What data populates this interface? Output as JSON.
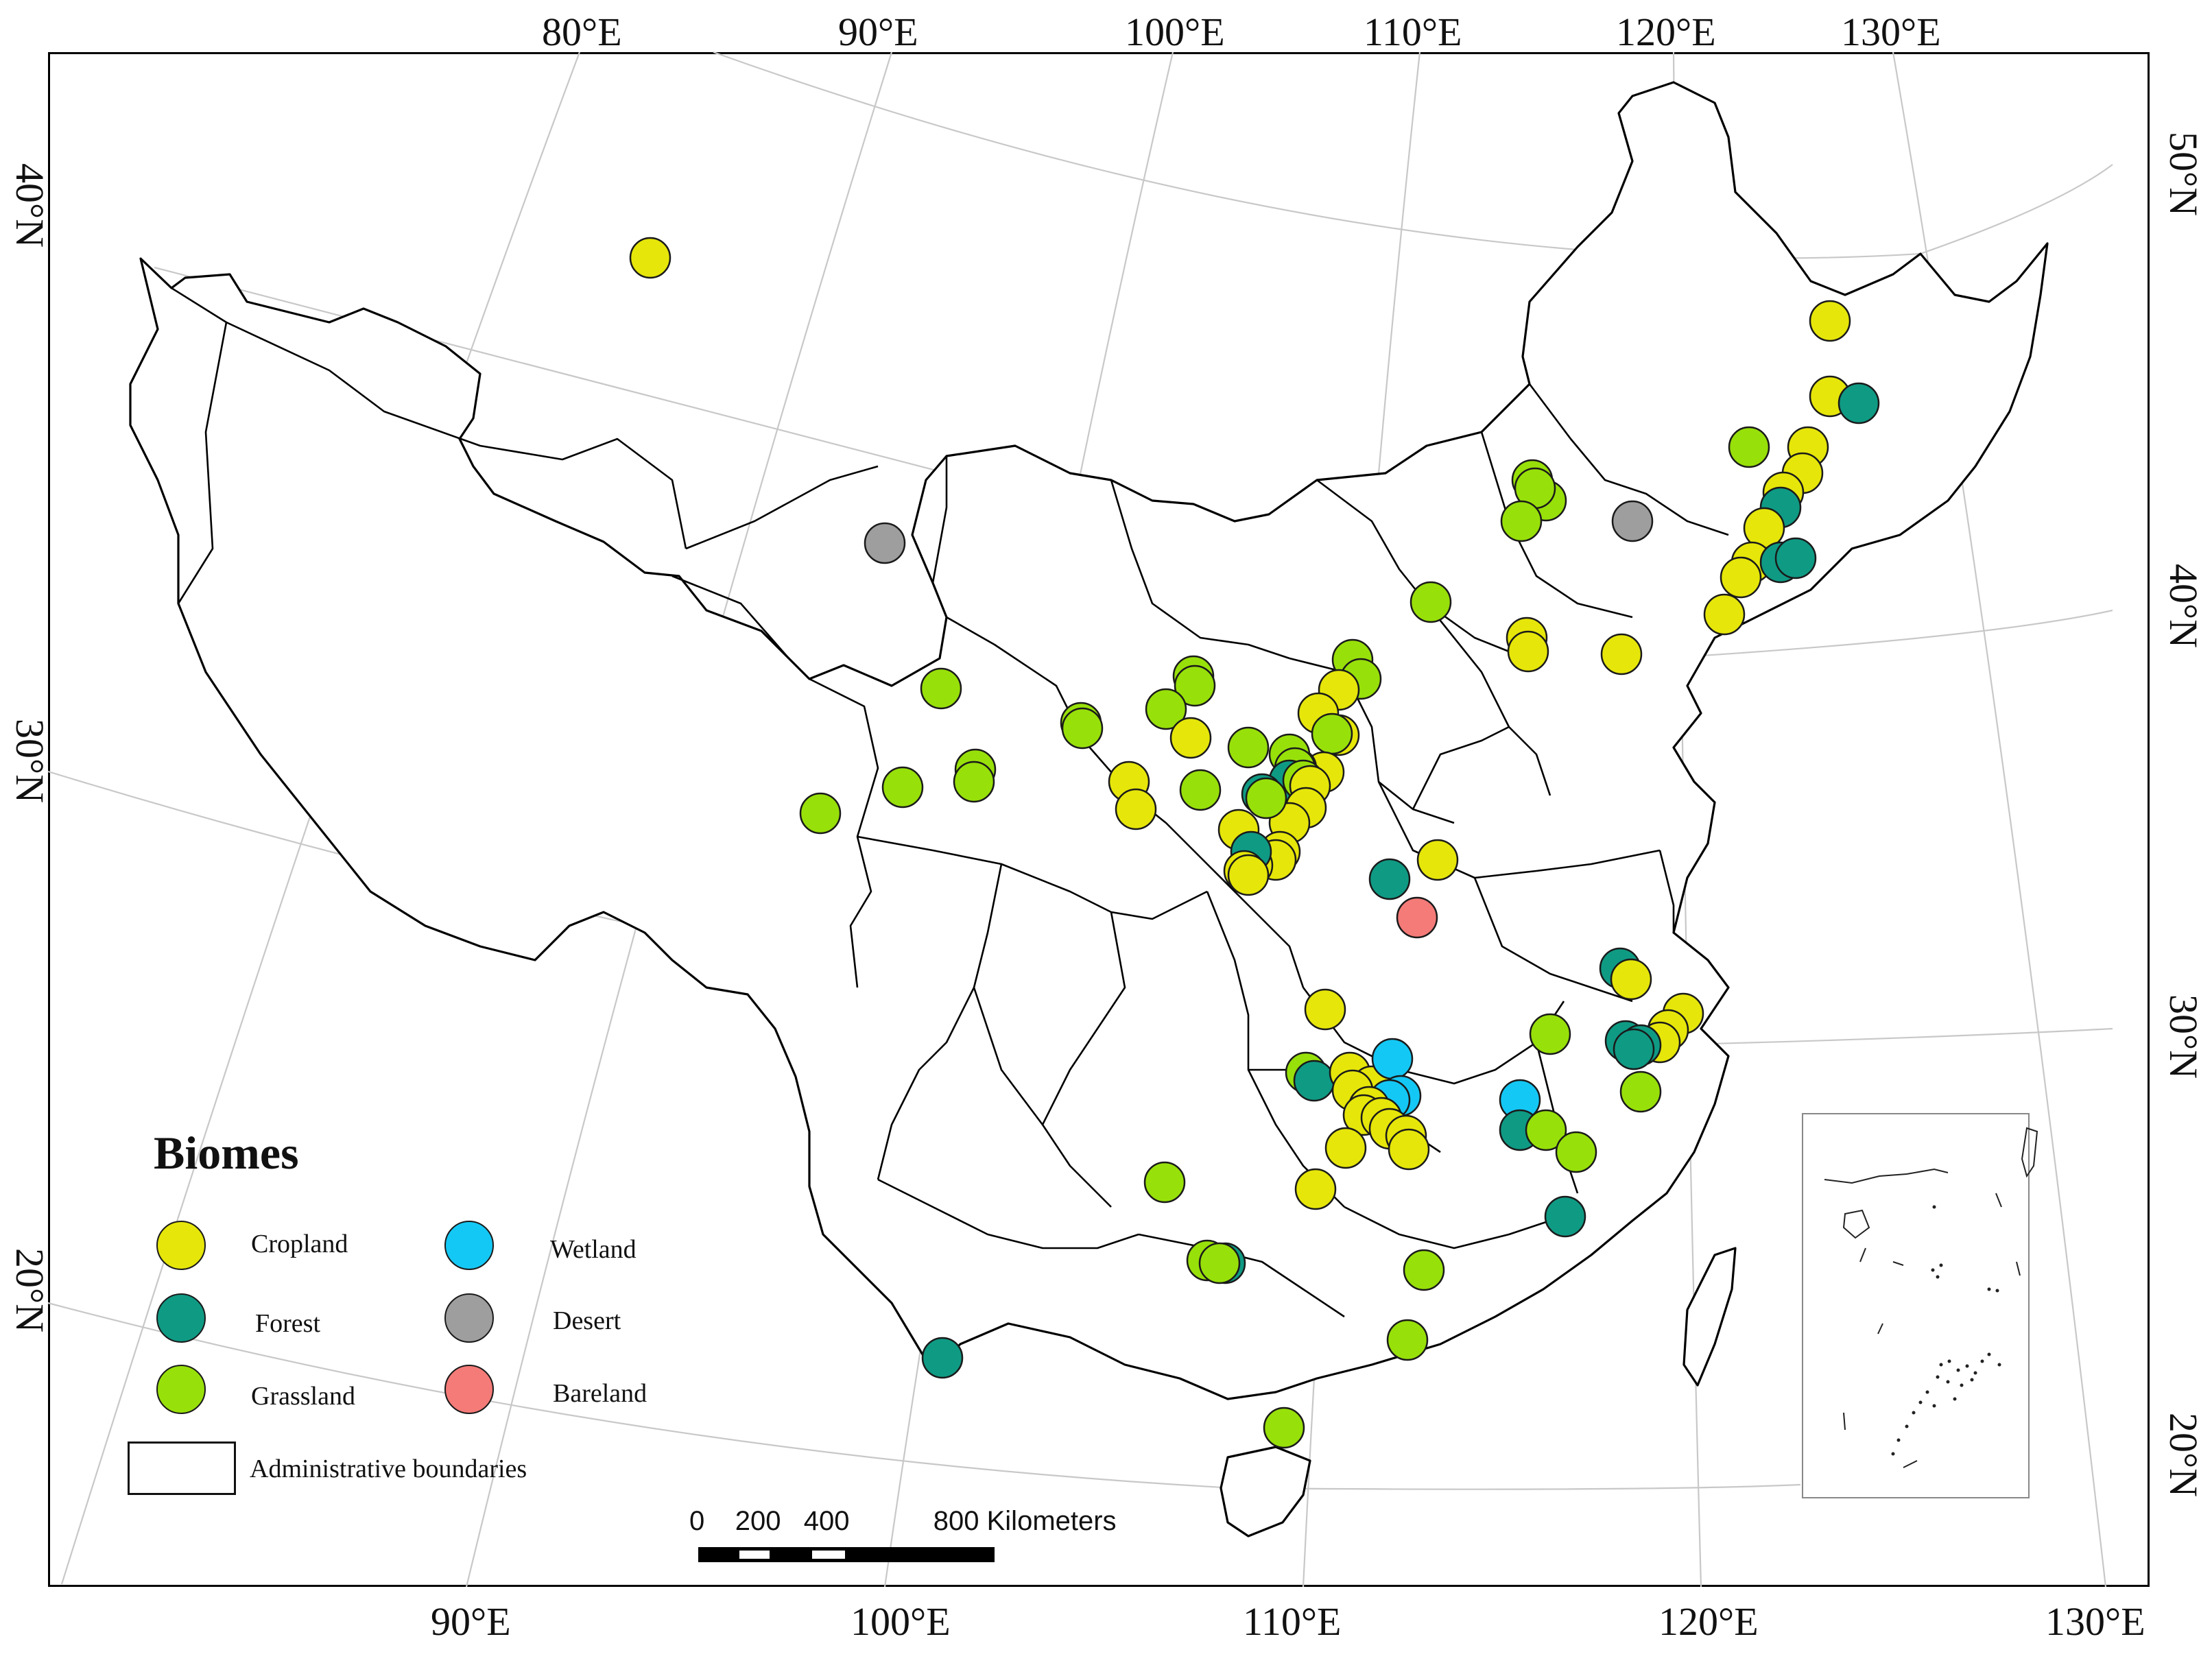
{
  "legend": {
    "title": "Biomes",
    "items": [
      {
        "label": "Cropland",
        "color": "#e6e60a"
      },
      {
        "label": "Forest",
        "color": "#0f9a84"
      },
      {
        "label": "Grassland",
        "color": "#98e00a"
      },
      {
        "label": "Wetland",
        "color": "#14c8f5"
      },
      {
        "label": "Desert",
        "color": "#9e9e9e"
      },
      {
        "label": "Bareland",
        "color": "#f47b78"
      }
    ],
    "boundary_label": "Administrative boundaries"
  },
  "scale_bar": {
    "text": "0    200   400           800 Kilometers"
  },
  "graticule_labels": {
    "top": [
      "80°E",
      "90°E",
      "100°E",
      "110°E",
      "120°E",
      "130°E"
    ],
    "bottom": [
      "90°E",
      "100°E",
      "110°E",
      "120°E",
      "130°E"
    ],
    "left": [
      "40°N",
      "30°N",
      "20°N"
    ],
    "right": [
      "50°N",
      "40°N",
      "30°N",
      "20°N"
    ]
  }
}
